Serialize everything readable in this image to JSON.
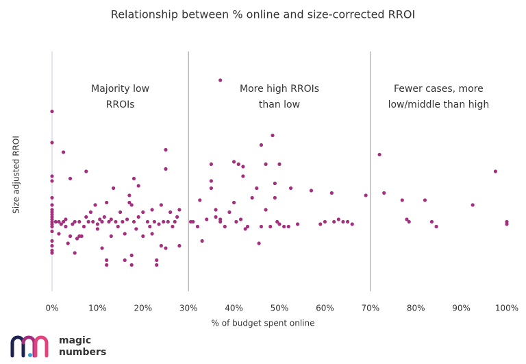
{
  "chart_data": {
    "type": "scatter",
    "title": "Relationship between % online and size-corrected RROI",
    "x_label": "% of budget spent online",
    "y_label": "Size adjusted RROI",
    "color": "#a3307e",
    "xlim": [
      0,
      100
    ],
    "ylim": [
      0,
      10
    ],
    "xticks": [
      {
        "value": 0,
        "label": "0%"
      },
      {
        "value": 10,
        "label": "10%"
      },
      {
        "value": 20,
        "label": "20%"
      },
      {
        "value": 30,
        "label": "30%"
      },
      {
        "value": 40,
        "label": "40%"
      },
      {
        "value": 50,
        "label": "50%"
      },
      {
        "value": 60,
        "label": "60%"
      },
      {
        "value": 70,
        "label": "70%"
      },
      {
        "value": 80,
        "label": "80%"
      },
      {
        "value": 90,
        "label": "90%"
      },
      {
        "value": 100,
        "label": "100%"
      }
    ],
    "dividers": [
      30,
      70
    ],
    "annotations": [
      [
        "Majority low",
        "RROIs"
      ],
      [
        "More high RROIs",
        "than low"
      ],
      [
        "Fewer cases, more",
        "low/middle than high"
      ]
    ],
    "x": [
      0,
      0,
      0,
      0,
      0,
      0,
      0,
      0,
      0,
      0,
      0,
      0,
      0,
      0,
      0,
      0,
      0,
      0,
      0,
      0.8,
      1.5,
      1.5,
      2,
      2.5,
      3,
      3,
      2.5,
      3.5,
      4,
      4,
      4.5,
      5,
      5,
      5.5,
      6,
      6,
      6.5,
      7,
      7.5,
      7.5,
      8,
      8.5,
      9,
      9.5,
      10,
      10,
      10.5,
      11,
      11,
      11.5,
      12,
      12,
      12,
      12.5,
      13,
      13,
      13.5,
      14,
      14.5,
      15,
      15.5,
      16,
      16,
      16.5,
      17,
      17,
      17.5,
      17.5,
      17.5,
      18,
      18,
      18.5,
      19,
      19,
      20,
      20,
      21,
      21.5,
      22,
      22,
      22.5,
      23,
      23,
      23.5,
      24,
      24,
      24.5,
      25,
      25,
      25,
      25.5,
      26,
      26.5,
      27,
      27.5,
      28,
      28,
      30.5,
      31,
      32,
      32.5,
      33,
      34,
      35,
      35,
      35,
      36,
      36,
      37,
      37,
      37,
      38,
      39,
      40,
      40,
      40.5,
      41,
      41.5,
      42,
      42,
      42.5,
      43,
      44,
      45,
      45.5,
      46,
      46,
      47,
      47,
      48,
      48.5,
      49,
      49,
      49.5,
      50,
      50,
      51,
      52,
      52.5,
      54,
      57,
      59,
      60,
      61.5,
      62,
      63,
      64,
      65,
      66,
      69,
      72,
      73,
      77,
      78,
      78.5,
      82,
      83.5,
      84.5,
      92.5,
      97.5,
      100,
      100
    ],
    "values": [
      7.5,
      6.2,
      4.8,
      4.6,
      3.9,
      3.6,
      3.4,
      3.3,
      3.2,
      3.1,
      3.0,
      2.9,
      2.8,
      2.7,
      2.5,
      2.1,
      1.9,
      1.7,
      1.6,
      2.9,
      2.9,
      2.4,
      2.8,
      2.9,
      3.0,
      2.7,
      5.8,
      2.0,
      4.7,
      2.3,
      2.8,
      2.9,
      1.6,
      2.2,
      2.3,
      2.9,
      2.3,
      2.7,
      3.1,
      5.0,
      2.9,
      3.3,
      2.9,
      3.6,
      2.8,
      2.6,
      3.0,
      1.8,
      2.9,
      3.1,
      3.7,
      1.3,
      1.1,
      2.9,
      2.3,
      3.0,
      4.3,
      2.9,
      2.7,
      3.3,
      2.9,
      1.3,
      2.4,
      3.0,
      3.7,
      4.0,
      1.1,
      1.5,
      3.6,
      4.7,
      2.9,
      2.6,
      3.1,
      4.4,
      3.3,
      2.3,
      2.9,
      2.7,
      3.4,
      2.4,
      2.9,
      1.3,
      1.1,
      2.8,
      1.9,
      3.6,
      2.9,
      5.1,
      5.9,
      1.8,
      2.9,
      3.3,
      2.7,
      2.9,
      3.1,
      3.4,
      1.9,
      2.9,
      2.9,
      2.7,
      3.8,
      2.1,
      3.0,
      4.6,
      5.3,
      4.3,
      3.1,
      3.4,
      8.8,
      3.0,
      2.9,
      2.7,
      3.3,
      5.4,
      3.7,
      2.9,
      5.3,
      3.0,
      5.2,
      4.8,
      2.6,
      2.7,
      3.9,
      4.3,
      2.0,
      6.1,
      2.7,
      5.3,
      3.4,
      2.7,
      6.5,
      4.5,
      3.9,
      2.9,
      5.3,
      2.8,
      2.7,
      2.7,
      4.3,
      2.8,
      4.2,
      2.8,
      2.9,
      4.1,
      2.9,
      3.0,
      2.9,
      2.9,
      2.8,
      4.0,
      5.7,
      4.1,
      3.8,
      3.0,
      2.9,
      3.8,
      2.9,
      2.7,
      3.6,
      5.0,
      2.9,
      2.8
    ]
  },
  "logo": {
    "text": [
      "magic",
      "numbers"
    ]
  }
}
